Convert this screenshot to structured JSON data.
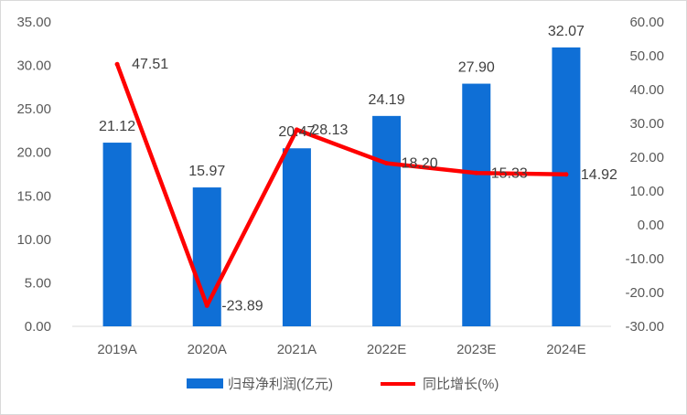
{
  "chart_data": {
    "type": "bar",
    "categories": [
      "2019A",
      "2020A",
      "2021A",
      "2022E",
      "2023E",
      "2024E"
    ],
    "series": [
      {
        "name": "归母净利润(亿元)",
        "type": "bar",
        "axis": "left",
        "values": [
          21.12,
          15.97,
          20.47,
          24.19,
          27.9,
          32.07
        ],
        "labels": [
          "21.12",
          "15.97",
          "20.47",
          "24.19",
          "27.90",
          "32.07"
        ]
      },
      {
        "name": "同比增长(%)",
        "type": "line",
        "axis": "right",
        "values": [
          47.51,
          -23.89,
          28.13,
          18.2,
          15.33,
          14.92
        ],
        "labels": [
          "47.51",
          "-23.89",
          "28.13",
          "18.20",
          "15.33",
          "14.92"
        ]
      }
    ],
    "y_left": {
      "ylim": [
        0,
        35
      ],
      "ticks": [
        "0.00",
        "5.00",
        "10.00",
        "15.00",
        "20.00",
        "25.00",
        "30.00",
        "35.00"
      ]
    },
    "y_right": {
      "ylim": [
        -30,
        60
      ],
      "ticks": [
        "-30.00",
        "-20.00",
        "-10.00",
        "0.00",
        "10.00",
        "20.00",
        "30.00",
        "40.00",
        "50.00",
        "60.00"
      ]
    },
    "grid": false,
    "legend": "bottom",
    "colors": {
      "bar": "#0f6fd6",
      "line": "#ff0000"
    }
  }
}
